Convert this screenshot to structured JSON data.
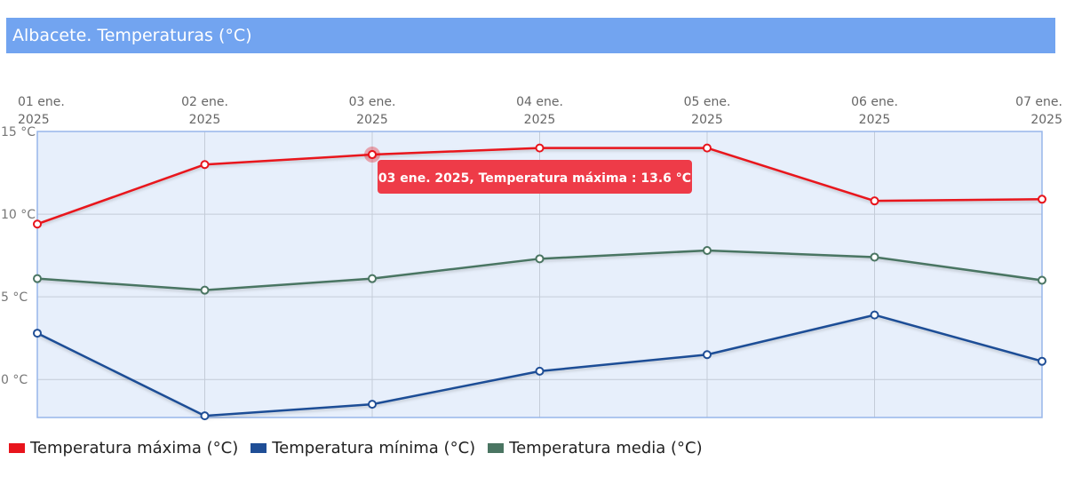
{
  "title": "Albacete. Temperaturas (°C)",
  "colors": {
    "title_bar": "#72a4f0",
    "plot_bg": "#e7effb",
    "plot_border": "#97b6ea",
    "grid": "#c4ccd8",
    "tooltip_bg": "#ee3b48"
  },
  "tooltip": {
    "text": "03 ene. 2025, Temperatura máxima : 13.6 °C",
    "series": 0,
    "index": 2
  },
  "chart_data": {
    "type": "line",
    "x": [
      "01 ene. 2025",
      "02 ene. 2025",
      "03 ene. 2025",
      "04 ene. 2025",
      "05 ene. 2025",
      "06 ene. 2025",
      "07 ene. 2025"
    ],
    "x_tick_labels": [
      [
        "01 ene.",
        "2025"
      ],
      [
        "02 ene.",
        "2025"
      ],
      [
        "03 ene.",
        "2025"
      ],
      [
        "04 ene.",
        "2025"
      ],
      [
        "05 ene.",
        "2025"
      ],
      [
        "06 ene.",
        "2025"
      ],
      [
        "07 ene.",
        "2025"
      ]
    ],
    "y_ticks": [
      15,
      10,
      5,
      0
    ],
    "y_tick_labels": [
      "15 °C",
      "10 °C",
      "5 °C",
      "0 °C"
    ],
    "ylim": [
      -2.3,
      15
    ],
    "grid": true,
    "legend_position": "bottom-left",
    "series": [
      {
        "name": "Temperatura máxima (°C)",
        "color": "#e8141c",
        "values": [
          9.4,
          13.0,
          13.6,
          14.0,
          14.0,
          10.8,
          10.9
        ]
      },
      {
        "name": "Temperatura mínima (°C)",
        "color": "#1f4e96",
        "values": [
          2.8,
          -2.2,
          -1.5,
          0.5,
          1.5,
          3.9,
          1.1
        ]
      },
      {
        "name": "Temperatura media (°C)",
        "color": "#4a7562",
        "values": [
          6.1,
          5.4,
          6.1,
          7.3,
          7.8,
          7.4,
          6.0
        ]
      }
    ]
  }
}
